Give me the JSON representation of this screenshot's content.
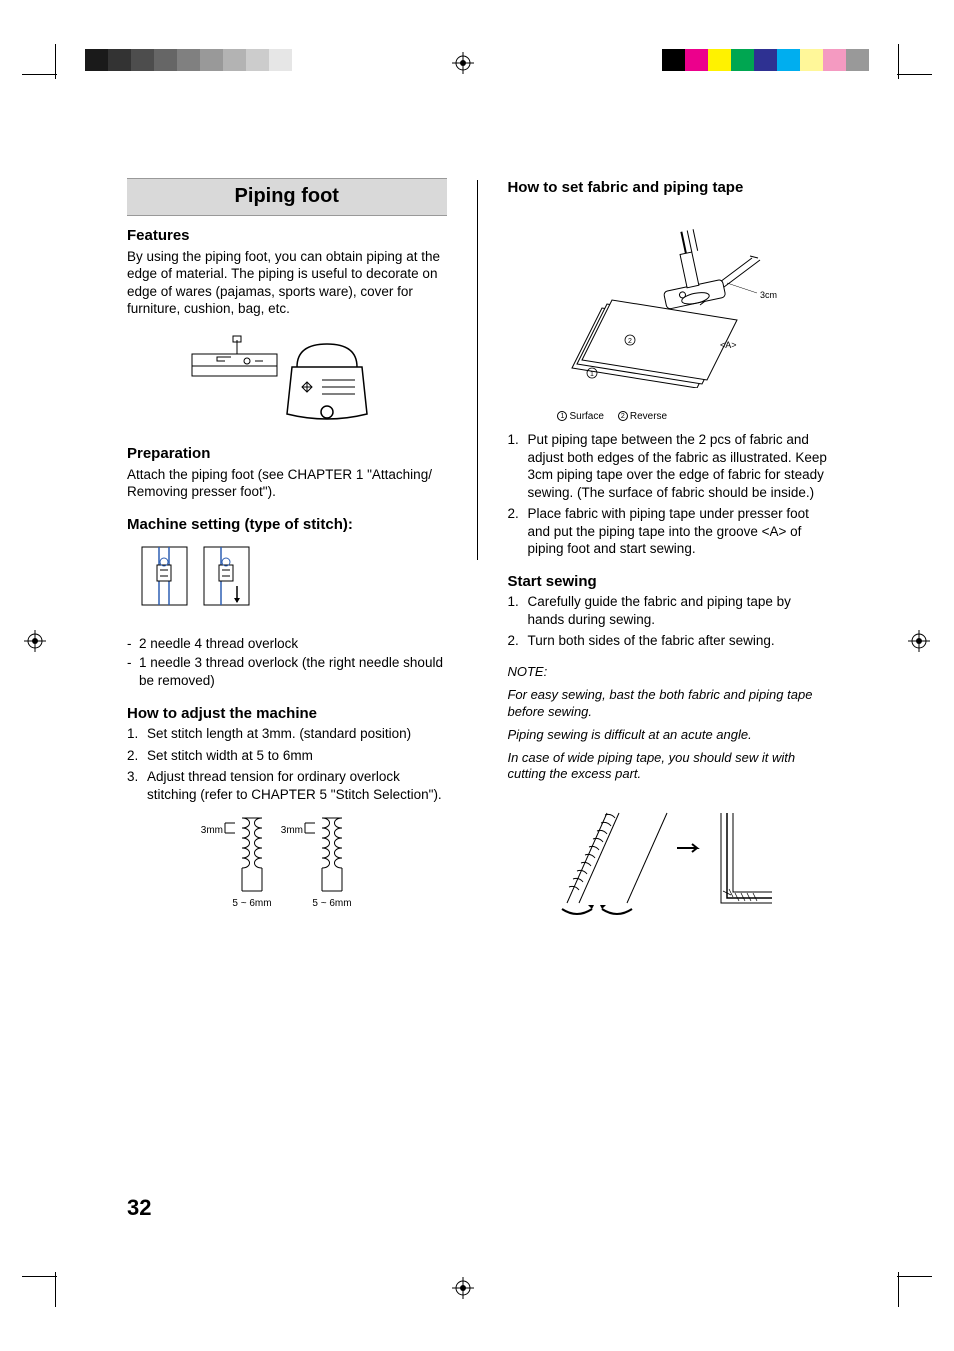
{
  "page_number": "32",
  "title": "Piping foot",
  "colorbar_gray": [
    "#1a1a1a",
    "#333333",
    "#4d4d4d",
    "#666666",
    "#808080",
    "#999999",
    "#b3b3b3",
    "#cccccc",
    "#e6e6e6",
    "#ffffff"
  ],
  "colorbar_color": [
    "#000000",
    "#ec008c",
    "#fff200",
    "#00a651",
    "#2e3192",
    "#00aeef",
    "#fff799",
    "#f49ac1",
    "#999999"
  ],
  "left": {
    "features": {
      "heading": "Features",
      "text": "By using the piping foot, you can obtain piping at the edge of material. The piping is useful to decorate on edge of wares (pajamas, sports ware), cover for furniture, cushion, bag, etc."
    },
    "preparation": {
      "heading": "Preparation",
      "text": "Attach the piping foot (see CHAPTER 1 \"Attaching/ Removing presser foot\")."
    },
    "machine_setting": {
      "heading": "Machine setting (type of stitch):",
      "opt1": "2 needle 4 thread overlock",
      "opt2": "1 needle 3 thread overlock (the right needle should be removed)"
    },
    "adjust": {
      "heading": "How to adjust the machine",
      "s1": "Set stitch length at 3mm. (standard position)",
      "s2": "Set stitch width at 5 to 6mm",
      "s3": "Adjust thread tension for ordinary overlock stitching (refer to CHAPTER 5 \"Stitch Selection\")."
    },
    "stitch_labels": {
      "len": "3mm",
      "wid": "5 ~ 6mm"
    }
  },
  "right": {
    "set_fabric": {
      "heading": "How to set fabric and piping tape",
      "legend1": "Surface",
      "legend2": "Reverse",
      "label_3cm": "3cm",
      "label_A": "<A>",
      "s1": "Put piping tape between the 2 pcs of fabric and adjust both edges of the fabric as illustrated. Keep 3cm piping tape over the edge of fabric for steady sewing. (The surface of fabric should be inside.)",
      "s2": "Place fabric with piping tape under presser foot and put the piping tape into the groove <A> of piping foot and start sewing."
    },
    "start_sewing": {
      "heading": "Start sewing",
      "s1": "Carefully guide the fabric and piping tape by hands during sewing.",
      "s2": "Turn both sides of the fabric after sewing."
    },
    "notes": {
      "label": "NOTE:",
      "n1": "For easy sewing, bast the both fabric and piping tape before sewing.",
      "n2": "Piping sewing is difficult at an acute angle.",
      "n3": "In case of wide piping tape, you should sew it with cutting the excess part."
    }
  }
}
